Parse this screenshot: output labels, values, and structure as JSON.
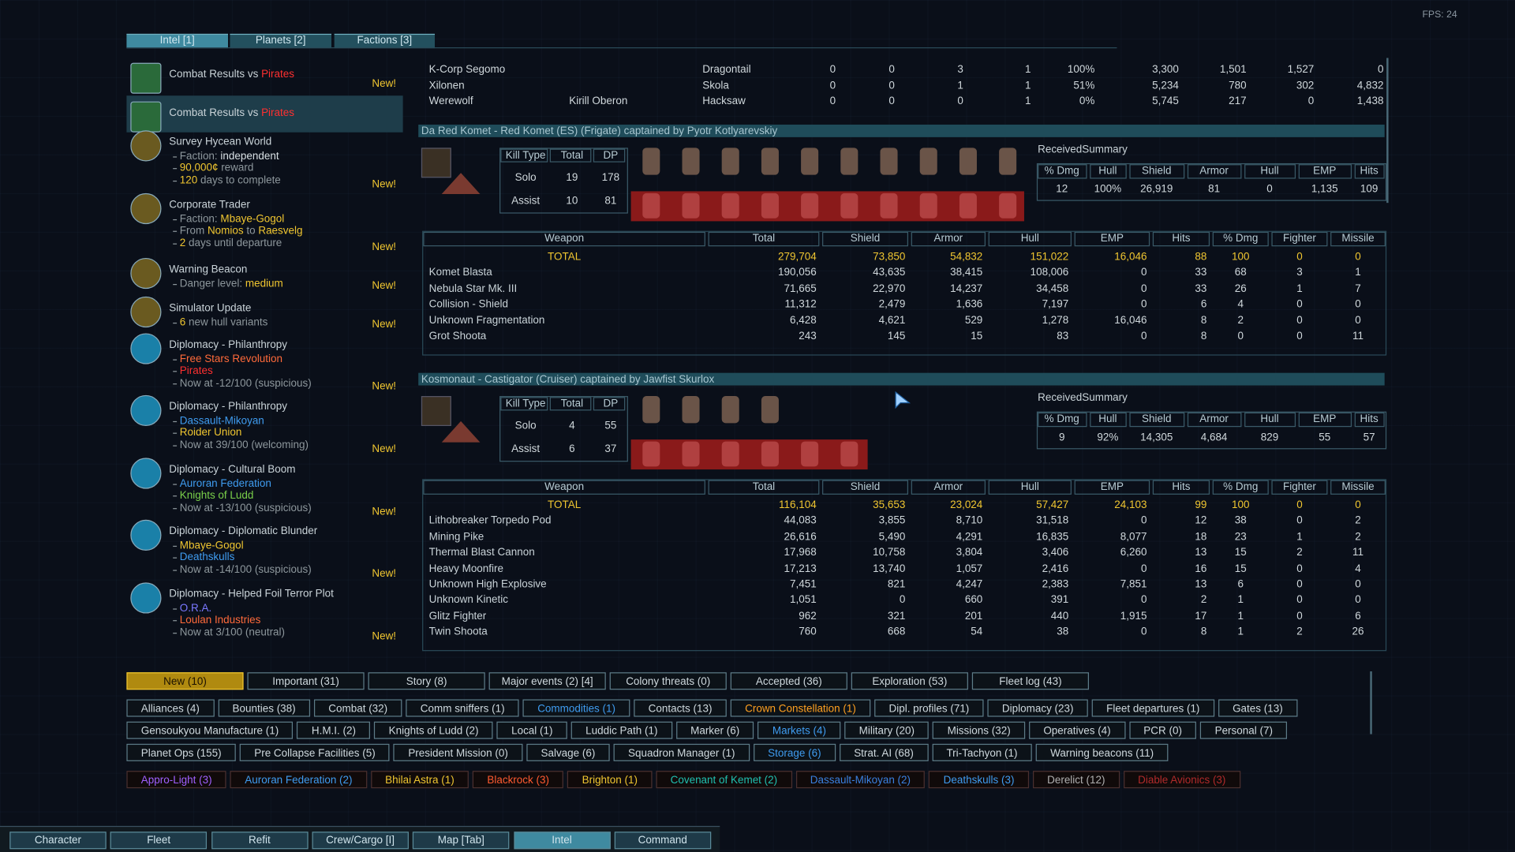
{
  "top_tabs": [
    "Intel [1]",
    "Planets [2]",
    "Factions [3]"
  ],
  "fps": "FPS: 24",
  "intel_list": [
    {
      "title": [
        {
          "text": "Combat Results vs "
        },
        {
          "text": "Pirates",
          "color": "#ff3030"
        }
      ],
      "lines": [],
      "new": "New!"
    },
    {
      "title": [
        {
          "text": "Combat Results vs "
        },
        {
          "text": "Pirates",
          "color": "#ff3030"
        }
      ],
      "lines": []
    },
    {
      "title": [
        {
          "text": "Survey Hycean World"
        }
      ],
      "lines": [
        [
          {
            "text": "Faction: "
          },
          {
            "text": "independent",
            "color": "#d8e0e4"
          }
        ],
        [
          {
            "text": "90,000¢",
            "color": "#f0c630"
          },
          {
            "text": " reward"
          }
        ],
        [
          {
            "text": "120",
            "color": "#f0c630"
          },
          {
            "text": " days to complete"
          }
        ]
      ],
      "new": "New!"
    },
    {
      "title": [
        {
          "text": "Corporate Trader"
        }
      ],
      "lines": [
        [
          {
            "text": "Faction: "
          },
          {
            "text": "Mbaye-Gogol",
            "color": "#f0c630"
          }
        ],
        [
          {
            "text": "From "
          },
          {
            "text": "Nomios",
            "color": "#f0c630"
          },
          {
            "text": " to "
          },
          {
            "text": "Raesvelg",
            "color": "#f0c630"
          }
        ],
        [
          {
            "text": "2",
            "color": "#f0c630"
          },
          {
            "text": " days until departure"
          }
        ]
      ],
      "new": "New!"
    },
    {
      "title": [
        {
          "text": "Warning Beacon"
        }
      ],
      "lines": [
        [
          {
            "text": "Danger level: "
          },
          {
            "text": "medium",
            "color": "#f0c630"
          }
        ]
      ],
      "new": "New!"
    },
    {
      "title": [
        {
          "text": "Simulator Update"
        }
      ],
      "lines": [
        [
          {
            "text": "6",
            "color": "#f0c630"
          },
          {
            "text": " new hull variants"
          }
        ]
      ],
      "new": "New!"
    },
    {
      "title": [
        {
          "text": "Diplomacy - Philanthropy"
        }
      ],
      "lines": [
        [
          {
            "text": "Free Stars Revolution",
            "color": "#ff6a3a"
          }
        ],
        [
          {
            "text": "Pirates",
            "color": "#ff3030"
          }
        ],
        [
          {
            "text": "Now at -12/100 (suspicious)"
          }
        ]
      ],
      "new": "New!"
    },
    {
      "title": [
        {
          "text": "Diplomacy - Philanthropy"
        }
      ],
      "lines": [
        [
          {
            "text": "Dassault-Mikoyan",
            "color": "#3f9cf0"
          }
        ],
        [
          {
            "text": "Roider Union",
            "color": "#f0c630"
          }
        ],
        [
          {
            "text": "Now at 39/100 (welcoming)"
          }
        ]
      ],
      "new": "New!"
    },
    {
      "title": [
        {
          "text": "Diplomacy - Cultural Boom"
        }
      ],
      "lines": [
        [
          {
            "text": "Auroran Federation",
            "color": "#3f9cf0"
          }
        ],
        [
          {
            "text": "Knights of Ludd",
            "color": "#7ad04a"
          }
        ],
        [
          {
            "text": "Now at -13/100 (suspicious)"
          }
        ]
      ],
      "new": "New!"
    },
    {
      "title": [
        {
          "text": "Diplomacy - Diplomatic Blunder"
        }
      ],
      "lines": [
        [
          {
            "text": "Mbaye-Gogol",
            "color": "#f0c630"
          }
        ],
        [
          {
            "text": "Deathskulls",
            "color": "#3f9cf0"
          }
        ],
        [
          {
            "text": "Now at -14/100 (suspicious)"
          }
        ]
      ],
      "new": "New!"
    },
    {
      "title": [
        {
          "text": "Diplomacy - Helped Foil Terror Plot"
        }
      ],
      "lines": [
        [
          {
            "text": "O.R.A.",
            "color": "#7a78ff"
          }
        ],
        [
          {
            "text": "Loulan Industries",
            "color": "#ff6a3a"
          }
        ],
        [
          {
            "text": "Now at 3/100 (neutral)"
          }
        ]
      ],
      "new": "New!"
    }
  ],
  "top_table": [
    [
      "K-Corp Segomo",
      "",
      "Dragontail",
      "0",
      "0",
      "3",
      "1",
      "100%",
      "3,300",
      "1,501",
      "1,527",
      "0"
    ],
    [
      "Xilonen",
      "",
      "Skola",
      "0",
      "0",
      "1",
      "1",
      "51%",
      "5,234",
      "780",
      "302",
      "4,832"
    ],
    [
      "Werewolf",
      "Kirill Oberon",
      "Hacksaw",
      "0",
      "0",
      "0",
      "1",
      "0%",
      "5,745",
      "217",
      "0",
      "1,438"
    ]
  ],
  "sections": [
    {
      "header": "Da Red Komet - Red Komet (ES) (Frigate) captained by Pyotr Kotlyarevskiy",
      "kill_headers": [
        "Kill Type",
        "Total",
        "DP"
      ],
      "kill_rows": [
        [
          "Solo",
          "19",
          "178"
        ],
        [
          "Assist",
          "10",
          "81"
        ]
      ],
      "summary_label": "ReceivedSummary",
      "summary_headers": [
        "% Dmg",
        "Hull",
        "Shield",
        "Armor",
        "Hull",
        "EMP",
        "Hits"
      ],
      "summary_values": [
        "12",
        "100%",
        "26,919",
        "81",
        "0",
        "1,135",
        "109"
      ],
      "weapon_headers": [
        "Weapon",
        "Total",
        "Shield",
        "Armor",
        "Hull",
        "EMP",
        "Hits",
        "% Dmg",
        "Fighter",
        "Missile"
      ],
      "weapon_rows": [
        [
          "TOTAL",
          "279,704",
          "73,850",
          "54,832",
          "151,022",
          "16,046",
          "88",
          "100",
          "0",
          "0"
        ],
        [
          "Komet Blasta",
          "190,056",
          "43,635",
          "38,415",
          "108,006",
          "0",
          "33",
          "68",
          "3",
          "1"
        ],
        [
          "Nebula Star Mk. III",
          "71,665",
          "22,970",
          "14,237",
          "34,458",
          "0",
          "33",
          "26",
          "1",
          "7"
        ],
        [
          "Collision - Shield",
          "11,312",
          "2,479",
          "1,636",
          "7,197",
          "0",
          "6",
          "4",
          "0",
          "0"
        ],
        [
          "Unknown Fragmentation",
          "6,428",
          "4,621",
          "529",
          "1,278",
          "16,046",
          "8",
          "2",
          "0",
          "0"
        ],
        [
          "Grot Shoota",
          "243",
          "145",
          "15",
          "83",
          "0",
          "8",
          "0",
          "0",
          "11"
        ]
      ]
    },
    {
      "header": "Kosmonaut - Castigator (Cruiser) captained by Jawfist Skurlox",
      "kill_headers": [
        "Kill Type",
        "Total",
        "DP"
      ],
      "kill_rows": [
        [
          "Solo",
          "4",
          "55"
        ],
        [
          "Assist",
          "6",
          "37"
        ]
      ],
      "summary_label": "ReceivedSummary",
      "summary_headers": [
        "% Dmg",
        "Hull",
        "Shield",
        "Armor",
        "Hull",
        "EMP",
        "Hits"
      ],
      "summary_values": [
        "9",
        "92%",
        "14,305",
        "4,684",
        "829",
        "55",
        "57"
      ],
      "weapon_headers": [
        "Weapon",
        "Total",
        "Shield",
        "Armor",
        "Hull",
        "EMP",
        "Hits",
        "% Dmg",
        "Fighter",
        "Missile"
      ],
      "weapon_rows": [
        [
          "TOTAL",
          "116,104",
          "35,653",
          "23,024",
          "57,427",
          "24,103",
          "99",
          "100",
          "0",
          "0"
        ],
        [
          "Lithobreaker Torpedo Pod",
          "44,083",
          "3,855",
          "8,710",
          "31,518",
          "0",
          "12",
          "38",
          "0",
          "2"
        ],
        [
          "Mining Pike",
          "26,616",
          "5,490",
          "4,291",
          "16,835",
          "8,077",
          "18",
          "23",
          "1",
          "2"
        ],
        [
          "Thermal Blast Cannon",
          "17,968",
          "10,758",
          "3,804",
          "3,406",
          "6,260",
          "13",
          "15",
          "2",
          "11"
        ],
        [
          "Heavy Moonfire",
          "17,213",
          "13,740",
          "1,057",
          "2,416",
          "0",
          "16",
          "15",
          "0",
          "4"
        ],
        [
          "Unknown High Explosive",
          "7,451",
          "821",
          "4,247",
          "2,383",
          "7,851",
          "13",
          "6",
          "0",
          "0"
        ],
        [
          "Unknown Kinetic",
          "1,051",
          "0",
          "660",
          "391",
          "0",
          "2",
          "1",
          "0",
          "0"
        ],
        [
          "Glitz Fighter",
          "962",
          "321",
          "201",
          "440",
          "1,915",
          "17",
          "1",
          "0",
          "6"
        ],
        [
          "Twin Shoota",
          "760",
          "668",
          "54",
          "38",
          "0",
          "8",
          "1",
          "2",
          "26"
        ]
      ]
    }
  ],
  "filter_rows": [
    [
      {
        "label": "New (10)",
        "selected": true
      },
      {
        "label": "Important (31)"
      },
      {
        "label": "Story (8)"
      },
      {
        "label": "Major events (2) [4]"
      },
      {
        "label": "Colony threats (0)"
      },
      {
        "label": "Accepted (36)"
      },
      {
        "label": "Exploration (53)"
      },
      {
        "label": "Fleet log (43)"
      }
    ],
    [
      {
        "label": "Alliances (4)"
      },
      {
        "label": "Bounties (38)"
      },
      {
        "label": "Combat (32)"
      },
      {
        "label": "Comm sniffers (1)"
      },
      {
        "label": "Commodities (1)",
        "color": "#3f9cf0"
      },
      {
        "label": "Contacts (13)"
      },
      {
        "label": "Crown Constellation (1)",
        "color": "#ffa020"
      },
      {
        "label": "Dipl. profiles (71)"
      },
      {
        "label": "Diplomacy (23)"
      },
      {
        "label": "Fleet departures (1)"
      },
      {
        "label": "Gates (13)"
      }
    ],
    [
      {
        "label": "Gensoukyou Manufacture (1)"
      },
      {
        "label": "H.M.I. (2)"
      },
      {
        "label": "Knights of Ludd (2)"
      },
      {
        "label": "Local (1)"
      },
      {
        "label": "Luddic Path (1)"
      },
      {
        "label": "Marker (6)"
      },
      {
        "label": "Markets (4)",
        "color": "#3f9cf0"
      },
      {
        "label": "Military (20)"
      },
      {
        "label": "Missions (32)"
      },
      {
        "label": "Operatives (4)"
      },
      {
        "label": "PCR (0)"
      },
      {
        "label": "Personal (7)"
      }
    ],
    [
      {
        "label": "Planet Ops (155)"
      },
      {
        "label": "Pre Collapse Facilities (5)"
      },
      {
        "label": "President Mission (0)"
      },
      {
        "label": "Salvage (6)"
      },
      {
        "label": "Squadron Manager (1)"
      },
      {
        "label": "Storage (6)",
        "color": "#3f9cf0"
      },
      {
        "label": "Strat. AI (68)"
      },
      {
        "label": "Tri-Tachyon (1)"
      },
      {
        "label": "Warning beacons (11)"
      }
    ],
    [
      {
        "label": "Appro-Light (3)",
        "color": "#a060ff"
      },
      {
        "label": "Auroran Federation (2)",
        "color": "#3f9cf0"
      },
      {
        "label": "Bhilai Astra (1)",
        "color": "#f0c630"
      },
      {
        "label": "Blackrock (3)",
        "color": "#ff5a30"
      },
      {
        "label": "Brighton (1)",
        "color": "#f0c630"
      },
      {
        "label": "Covenant of Kemet (2)",
        "color": "#20c0b0"
      },
      {
        "label": "Dassault-Mikoyan (2)",
        "color": "#3a80e0"
      },
      {
        "label": "Deathskulls (3)",
        "color": "#3f9cf0"
      },
      {
        "label": "Derelict (12)",
        "color": "#b0b0b0"
      },
      {
        "label": "Diable Avionics (3)",
        "color": "#b02a2a"
      }
    ]
  ],
  "bottom_nav": [
    {
      "label": "Character"
    },
    {
      "label": "Fleet"
    },
    {
      "label": "Refit"
    },
    {
      "label": "Crew/Cargo [I]"
    },
    {
      "label": "Map [Tab]"
    },
    {
      "label": "Intel",
      "selected": true
    },
    {
      "label": "Command"
    }
  ]
}
